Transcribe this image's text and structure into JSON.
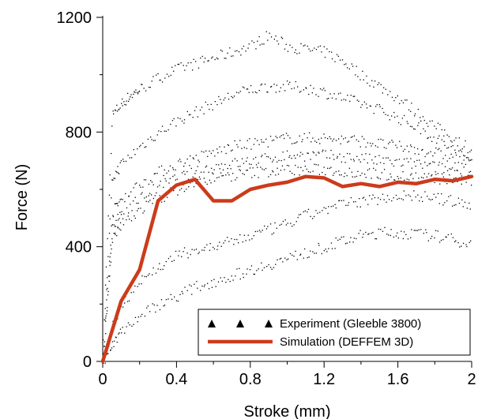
{
  "chart_data": {
    "type": "line",
    "xlabel": "Stroke (mm)",
    "ylabel": "Force (N)",
    "xlim": [
      0,
      2
    ],
    "ylim": [
      0,
      1200
    ],
    "x_ticks": [
      "0",
      "0.4",
      "0.8",
      "1.2",
      "1.6",
      "2"
    ],
    "y_ticks": [
      "0",
      "400",
      "800",
      "1200"
    ],
    "grid": false,
    "legend_position": "bottom-right",
    "series": [
      {
        "name": "Experiment (Gleeble 3800)",
        "style": "scatter",
        "color": "#000000",
        "curves": [
          [
            [
              0,
              60
            ],
            [
              0.05,
              860
            ],
            [
              0.1,
              900
            ],
            [
              0.15,
              930
            ],
            [
              0.2,
              950
            ],
            [
              0.3,
              990
            ],
            [
              0.4,
              1020
            ],
            [
              0.5,
              1040
            ],
            [
              0.6,
              1060
            ],
            [
              0.7,
              1080
            ],
            [
              0.8,
              1100
            ],
            [
              0.9,
              1140
            ],
            [
              1.0,
              1100
            ],
            [
              1.1,
              1090
            ],
            [
              1.2,
              1080
            ],
            [
              1.3,
              1050
            ],
            [
              1.4,
              1000
            ],
            [
              1.5,
              960
            ],
            [
              1.6,
              920
            ],
            [
              1.7,
              870
            ],
            [
              1.8,
              820
            ],
            [
              1.9,
              780
            ],
            [
              2.0,
              740
            ]
          ],
          [
            [
              0,
              40
            ],
            [
              0.05,
              640
            ],
            [
              0.1,
              690
            ],
            [
              0.2,
              750
            ],
            [
              0.3,
              800
            ],
            [
              0.4,
              840
            ],
            [
              0.5,
              870
            ],
            [
              0.6,
              900
            ],
            [
              0.7,
              930
            ],
            [
              0.8,
              950
            ],
            [
              0.9,
              960
            ],
            [
              1.0,
              960
            ],
            [
              1.1,
              955
            ],
            [
              1.2,
              940
            ],
            [
              1.3,
              920
            ],
            [
              1.4,
              900
            ],
            [
              1.5,
              880
            ],
            [
              1.6,
              850
            ],
            [
              1.7,
              820
            ],
            [
              1.8,
              780
            ],
            [
              1.9,
              740
            ],
            [
              2.0,
              700
            ]
          ],
          [
            [
              0,
              20
            ],
            [
              0.05,
              520
            ],
            [
              0.1,
              570
            ],
            [
              0.2,
              620
            ],
            [
              0.3,
              660
            ],
            [
              0.4,
              690
            ],
            [
              0.5,
              710
            ],
            [
              0.6,
              730
            ],
            [
              0.7,
              750
            ],
            [
              0.8,
              760
            ],
            [
              0.9,
              770
            ],
            [
              1.0,
              780
            ],
            [
              1.1,
              780
            ],
            [
              1.2,
              780
            ],
            [
              1.3,
              775
            ],
            [
              1.4,
              770
            ],
            [
              1.5,
              760
            ],
            [
              1.6,
              750
            ],
            [
              1.7,
              740
            ],
            [
              1.8,
              730
            ],
            [
              1.9,
              710
            ],
            [
              2.0,
              690
            ]
          ],
          [
            [
              0,
              10
            ],
            [
              0.05,
              460
            ],
            [
              0.1,
              520
            ],
            [
              0.2,
              570
            ],
            [
              0.3,
              610
            ],
            [
              0.4,
              640
            ],
            [
              0.5,
              660
            ],
            [
              0.6,
              680
            ],
            [
              0.7,
              690
            ],
            [
              0.8,
              700
            ],
            [
              0.9,
              710
            ],
            [
              1.0,
              720
            ],
            [
              1.1,
              720
            ],
            [
              1.2,
              720
            ],
            [
              1.3,
              715
            ],
            [
              1.4,
              710
            ],
            [
              1.5,
              700
            ],
            [
              1.6,
              695
            ],
            [
              1.7,
              690
            ],
            [
              1.8,
              680
            ],
            [
              1.9,
              670
            ],
            [
              2.0,
              660
            ]
          ],
          [
            [
              0,
              0
            ],
            [
              0.05,
              420
            ],
            [
              0.1,
              480
            ],
            [
              0.2,
              530
            ],
            [
              0.3,
              570
            ],
            [
              0.4,
              600
            ],
            [
              0.5,
              620
            ],
            [
              0.6,
              640
            ],
            [
              0.7,
              650
            ],
            [
              0.8,
              660
            ],
            [
              0.9,
              665
            ],
            [
              1.0,
              670
            ],
            [
              1.1,
              670
            ],
            [
              1.2,
              670
            ],
            [
              1.3,
              665
            ],
            [
              1.4,
              660
            ],
            [
              1.5,
              655
            ],
            [
              1.6,
              650
            ],
            [
              1.7,
              645
            ],
            [
              1.8,
              640
            ],
            [
              1.9,
              635
            ],
            [
              2.0,
              630
            ]
          ],
          [
            [
              0,
              0
            ],
            [
              0.05,
              120
            ],
            [
              0.1,
              200
            ],
            [
              0.2,
              280
            ],
            [
              0.3,
              330
            ],
            [
              0.4,
              370
            ],
            [
              0.5,
              390
            ],
            [
              0.6,
              400
            ],
            [
              0.7,
              420
            ],
            [
              0.8,
              440
            ],
            [
              0.9,
              460
            ],
            [
              1.0,
              480
            ],
            [
              1.1,
              510
            ],
            [
              1.2,
              530
            ],
            [
              1.3,
              550
            ],
            [
              1.4,
              560
            ],
            [
              1.5,
              570
            ],
            [
              1.6,
              580
            ],
            [
              1.7,
              580
            ],
            [
              1.8,
              570
            ],
            [
              1.9,
              560
            ],
            [
              2.0,
              540
            ]
          ],
          [
            [
              0,
              0
            ],
            [
              0.05,
              60
            ],
            [
              0.1,
              110
            ],
            [
              0.2,
              160
            ],
            [
              0.3,
              200
            ],
            [
              0.4,
              230
            ],
            [
              0.5,
              260
            ],
            [
              0.6,
              280
            ],
            [
              0.7,
              300
            ],
            [
              0.8,
              320
            ],
            [
              0.9,
              340
            ],
            [
              1.0,
              360
            ],
            [
              1.1,
              380
            ],
            [
              1.2,
              400
            ],
            [
              1.3,
              420
            ],
            [
              1.4,
              440
            ],
            [
              1.5,
              450
            ],
            [
              1.6,
              450
            ],
            [
              1.7,
              445
            ],
            [
              1.8,
              440
            ],
            [
              1.9,
              425
            ],
            [
              2.0,
              410
            ]
          ]
        ]
      },
      {
        "name": "Simulation (DEFFEM 3D)",
        "style": "line",
        "color": "#cc3b1b",
        "points": [
          [
            0,
            0
          ],
          [
            0.1,
            210
          ],
          [
            0.2,
            320
          ],
          [
            0.3,
            560
          ],
          [
            0.4,
            615
          ],
          [
            0.5,
            635
          ],
          [
            0.6,
            560
          ],
          [
            0.7,
            560
          ],
          [
            0.8,
            600
          ],
          [
            0.9,
            615
          ],
          [
            1.0,
            625
          ],
          [
            1.1,
            645
          ],
          [
            1.2,
            640
          ],
          [
            1.3,
            610
          ],
          [
            1.4,
            620
          ],
          [
            1.5,
            610
          ],
          [
            1.6,
            625
          ],
          [
            1.7,
            620
          ],
          [
            1.8,
            635
          ],
          [
            1.9,
            630
          ],
          [
            2.0,
            645
          ]
        ]
      }
    ]
  }
}
